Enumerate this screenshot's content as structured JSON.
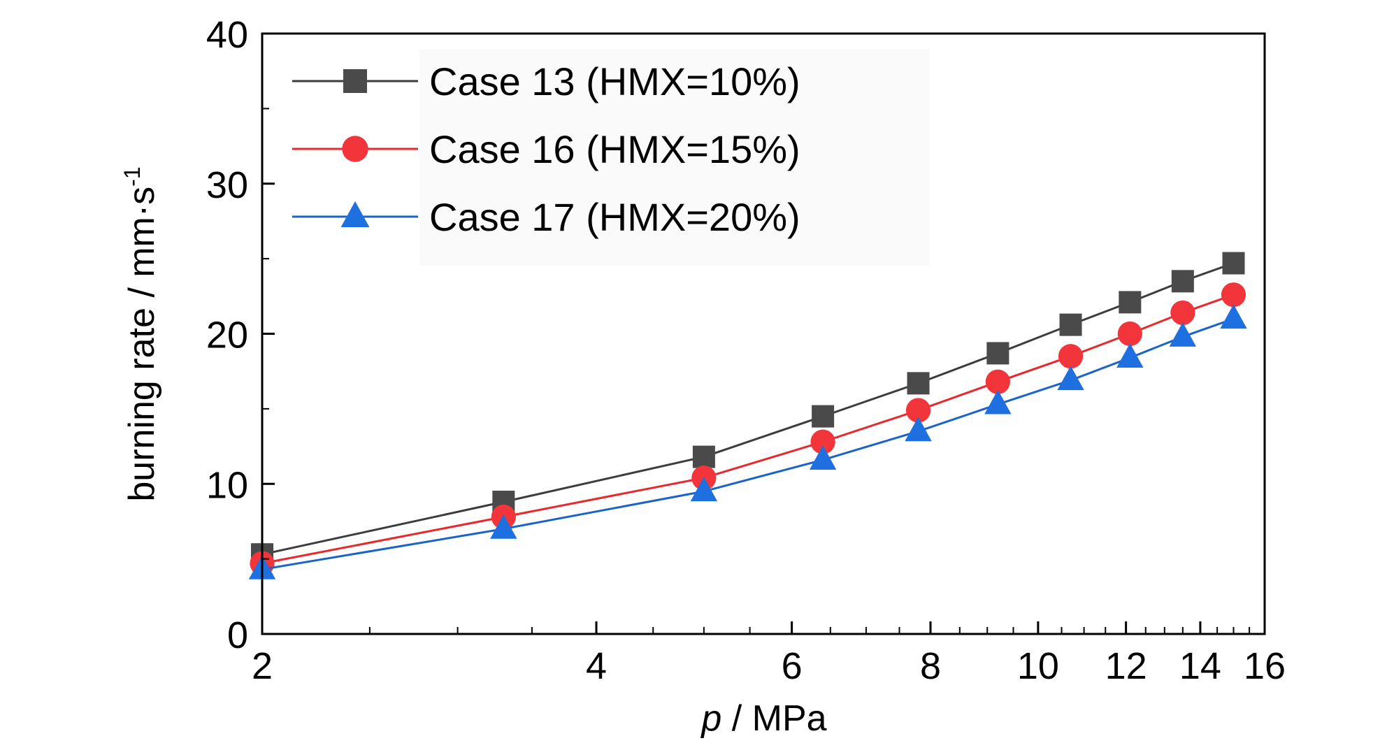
{
  "chart_data": {
    "type": "line",
    "x_scale": "log",
    "xlabel_italic": "p",
    "xlabel_rest": " / MPa",
    "ylabel": "burning rate / mm·s",
    "ylabel_sup": "-1",
    "xlim": [
      2,
      16
    ],
    "ylim": [
      0,
      40
    ],
    "x_ticks": [
      2,
      4,
      6,
      8,
      10,
      12,
      14,
      16
    ],
    "y_ticks": [
      0,
      10,
      20,
      30,
      40
    ],
    "legend_position": "top-left",
    "x": [
      2,
      3.3,
      5,
      6.4,
      7.8,
      9.2,
      10.7,
      12.1,
      13.5,
      15.0
    ],
    "series": [
      {
        "name": "Case 13 (HMX=10%)",
        "marker": "square",
        "color": "#3d3d3d",
        "markerColor": "#4a4a4a",
        "values": [
          5.3,
          8.8,
          11.8,
          14.5,
          16.7,
          18.7,
          20.6,
          22.1,
          23.5,
          24.7
        ]
      },
      {
        "name": "Case 16 (HMX=15%)",
        "marker": "circle",
        "color": "#e8282c",
        "markerColor": "#f2353a",
        "values": [
          4.7,
          7.8,
          10.4,
          12.8,
          14.9,
          16.8,
          18.5,
          20.0,
          21.4,
          22.6
        ]
      },
      {
        "name": "Case 17 (HMX=20%)",
        "marker": "triangle",
        "color": "#1a63c8",
        "markerColor": "#1e6fe0",
        "values": [
          4.3,
          7.0,
          9.5,
          11.6,
          13.5,
          15.3,
          16.9,
          18.4,
          19.8,
          21.0
        ]
      }
    ]
  }
}
